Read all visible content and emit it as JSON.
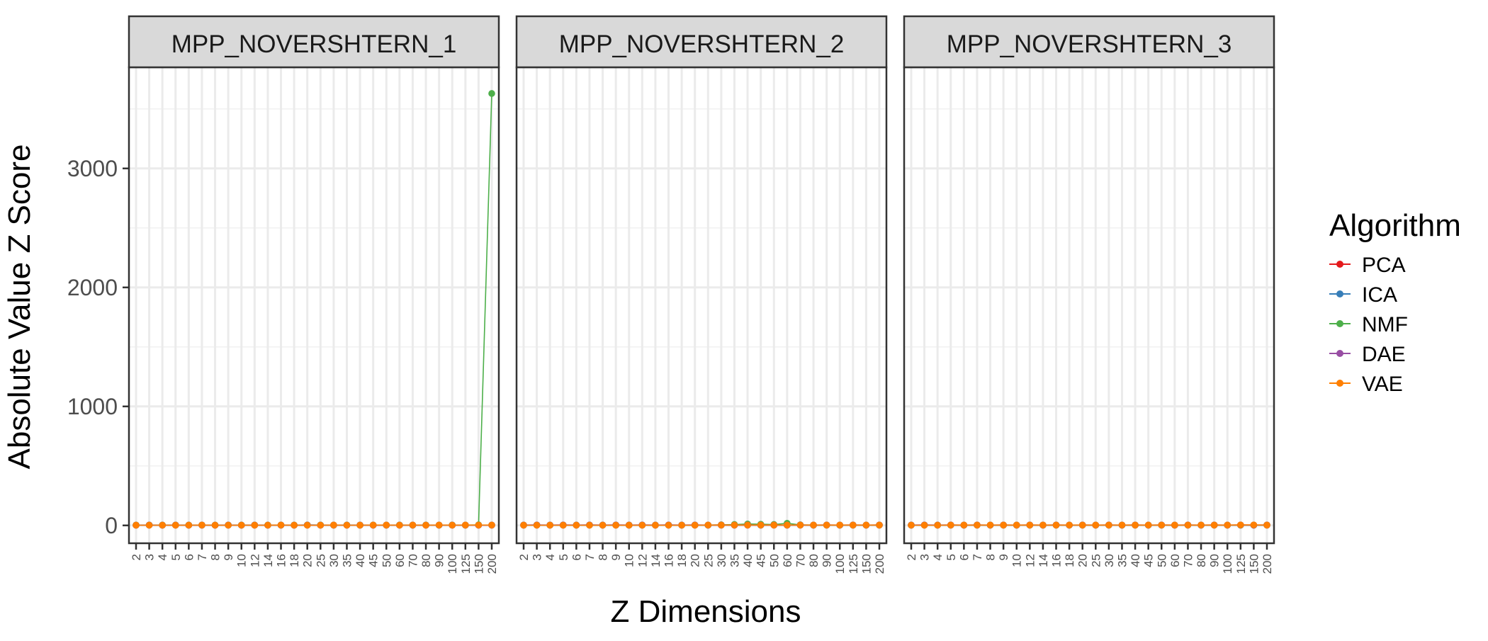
{
  "chart_data": {
    "type": "line",
    "xlabel": "Z Dimensions",
    "ylabel": "Absolute Value Z Score",
    "ylim": [
      -150,
      3850
    ],
    "yticks": [
      0,
      1000,
      2000,
      3000
    ],
    "categories": [
      "2",
      "3",
      "4",
      "5",
      "6",
      "7",
      "8",
      "9",
      "10",
      "12",
      "14",
      "16",
      "18",
      "20",
      "25",
      "30",
      "35",
      "40",
      "45",
      "50",
      "60",
      "70",
      "80",
      "90",
      "100",
      "125",
      "150",
      "200"
    ],
    "legend": {
      "title": "Algorithm",
      "position": "right",
      "entries": [
        {
          "name": "PCA",
          "color": "#e41a1c"
        },
        {
          "name": "ICA",
          "color": "#377eb8"
        },
        {
          "name": "NMF",
          "color": "#4daf4a"
        },
        {
          "name": "DAE",
          "color": "#984ea3"
        },
        {
          "name": "VAE",
          "color": "#ff7f00"
        }
      ]
    },
    "panels": [
      {
        "title": "MPP_NOVERSHTERN_1",
        "series": [
          {
            "name": "PCA",
            "values": [
              2,
              2,
              2,
              2,
              2,
              2,
              2,
              2,
              2,
              2,
              2,
              2,
              2,
              2,
              2,
              2,
              2,
              2,
              2,
              2,
              2,
              2,
              2,
              2,
              2,
              2,
              2,
              2
            ]
          },
          {
            "name": "ICA",
            "values": [
              2,
              3,
              2,
              3,
              2,
              3,
              2,
              3,
              2,
              3,
              2,
              3,
              2,
              4,
              3,
              2,
              3,
              2,
              3,
              2,
              3,
              2,
              3,
              2,
              3,
              2,
              3,
              3
            ]
          },
          {
            "name": "NMF",
            "values": [
              3,
              3,
              3,
              3,
              3,
              3,
              3,
              3,
              3,
              3,
              3,
              3,
              3,
              3,
              3,
              3,
              3,
              3,
              3,
              3,
              3,
              3,
              3,
              3,
              3,
              3,
              5,
              3630
            ]
          },
          {
            "name": "DAE",
            "values": [
              2,
              3,
              2,
              3,
              2,
              3,
              2,
              3,
              2,
              3,
              2,
              3,
              2,
              3,
              2,
              3,
              2,
              3,
              2,
              3,
              2,
              3,
              2,
              3,
              2,
              3,
              2,
              3
            ]
          },
          {
            "name": "VAE",
            "values": [
              2,
              2,
              2,
              2,
              2,
              3,
              2,
              2,
              2,
              2,
              2,
              3,
              2,
              2,
              2,
              3,
              2,
              2,
              3,
              3,
              2,
              3,
              2,
              3,
              2,
              3,
              3,
              3
            ]
          }
        ]
      },
      {
        "title": "MPP_NOVERSHTERN_2",
        "series": [
          {
            "name": "PCA",
            "values": [
              2,
              2,
              2,
              2,
              2,
              2,
              2,
              2,
              2,
              2,
              2,
              2,
              2,
              2,
              2,
              2,
              2,
              2,
              2,
              2,
              2,
              2,
              2,
              2,
              2,
              2,
              2,
              2
            ]
          },
          {
            "name": "ICA",
            "values": [
              2,
              3,
              2,
              3,
              2,
              3,
              2,
              3,
              2,
              3,
              2,
              3,
              2,
              3,
              2,
              3,
              2,
              3,
              2,
              3,
              2,
              3,
              2,
              3,
              2,
              3,
              2,
              3
            ]
          },
          {
            "name": "NMF",
            "values": [
              3,
              3,
              3,
              3,
              3,
              3,
              3,
              3,
              3,
              3,
              3,
              3,
              3,
              3,
              3,
              5,
              8,
              12,
              10,
              8,
              18,
              5,
              3,
              3,
              3,
              3,
              3,
              3
            ]
          },
          {
            "name": "DAE",
            "values": [
              3,
              4,
              3,
              4,
              3,
              4,
              3,
              4,
              3,
              4,
              3,
              4,
              3,
              4,
              3,
              4,
              3,
              4,
              3,
              4,
              3,
              4,
              3,
              4,
              3,
              4,
              3,
              4
            ]
          },
          {
            "name": "VAE",
            "values": [
              2,
              2,
              2,
              2,
              2,
              2,
              2,
              2,
              2,
              2,
              2,
              2,
              2,
              2,
              3,
              3,
              3,
              3,
              3,
              3,
              3,
              3,
              3,
              3,
              3,
              3,
              3,
              3
            ]
          }
        ]
      },
      {
        "title": "MPP_NOVERSHTERN_3",
        "series": [
          {
            "name": "PCA",
            "values": [
              2,
              2,
              2,
              2,
              2,
              2,
              2,
              2,
              2,
              2,
              2,
              2,
              2,
              2,
              2,
              2,
              2,
              2,
              2,
              2,
              2,
              2,
              2,
              2,
              2,
              2,
              2,
              2
            ]
          },
          {
            "name": "ICA",
            "values": [
              2,
              3,
              2,
              3,
              2,
              3,
              2,
              3,
              2,
              3,
              2,
              3,
              2,
              3,
              2,
              3,
              2,
              3,
              2,
              3,
              2,
              3,
              2,
              3,
              2,
              3,
              2,
              3
            ]
          },
          {
            "name": "NMF",
            "values": [
              3,
              3,
              3,
              3,
              3,
              3,
              3,
              3,
              3,
              3,
              3,
              3,
              3,
              3,
              3,
              3,
              3,
              3,
              3,
              3,
              3,
              3,
              3,
              3,
              3,
              3,
              3,
              3
            ]
          },
          {
            "name": "DAE",
            "values": [
              3,
              4,
              3,
              4,
              3,
              4,
              3,
              4,
              3,
              4,
              3,
              4,
              3,
              4,
              3,
              4,
              3,
              4,
              3,
              4,
              3,
              4,
              3,
              4,
              3,
              4,
              3,
              4
            ]
          },
          {
            "name": "VAE",
            "values": [
              2,
              2,
              2,
              3,
              3,
              3,
              3,
              3,
              3,
              3,
              3,
              3,
              3,
              3,
              3,
              3,
              3,
              3,
              3,
              3,
              3,
              3,
              3,
              3,
              3,
              4,
              4,
              3
            ]
          }
        ]
      }
    ]
  }
}
